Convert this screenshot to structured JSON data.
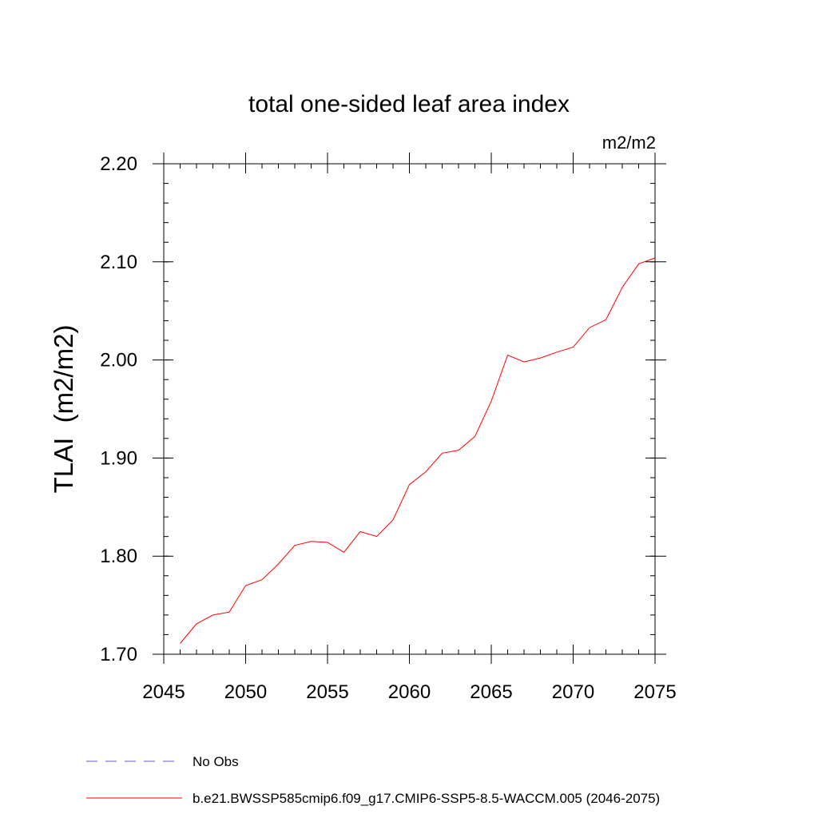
{
  "chart_data": {
    "type": "line",
    "title": "total one-sided leaf area index",
    "units": "m2/m2",
    "ylabel": "TLAI  (m2/m2)",
    "xlabel": "",
    "xlim": [
      2045,
      2075
    ],
    "ylim": [
      1.7,
      2.2
    ],
    "x_ticks": [
      {
        "value": 2045,
        "label": "2045"
      },
      {
        "value": 2050,
        "label": "2050"
      },
      {
        "value": 2055,
        "label": "2055"
      },
      {
        "value": 2060,
        "label": "2060"
      },
      {
        "value": 2065,
        "label": "2065"
      },
      {
        "value": 2070,
        "label": "2070"
      },
      {
        "value": 2075,
        "label": "2075"
      }
    ],
    "y_ticks": [
      {
        "value": 1.7,
        "label": "1.70"
      },
      {
        "value": 1.8,
        "label": "1.80"
      },
      {
        "value": 1.9,
        "label": "1.90"
      },
      {
        "value": 2.0,
        "label": "2.00"
      },
      {
        "value": 2.1,
        "label": "2.10"
      },
      {
        "value": 2.2,
        "label": "2.20"
      }
    ],
    "x_minor_step": 1,
    "y_minor_step": 0.02,
    "grid": false,
    "legend_position": "bottom",
    "legend": [
      {
        "label": "No Obs",
        "color": "#6a5acd",
        "dash": "dashed"
      },
      {
        "label": "b.e21.BWSSP585cmip6.f09_g17.CMIP6-SSP5-8.5-WACCM.005 (2046-2075)",
        "color": "#ff0000",
        "dash": "solid"
      }
    ],
    "series": [
      {
        "name": "b.e21.BWSSP585cmip6.f09_g17.CMIP6-SSP5-8.5-WACCM.005 (2046-2075)",
        "color": "#ff0000",
        "x": [
          2046,
          2047,
          2048,
          2049,
          2050,
          2051,
          2052,
          2053,
          2054,
          2055,
          2056,
          2057,
          2058,
          2059,
          2060,
          2061,
          2062,
          2063,
          2064,
          2065,
          2066,
          2067,
          2068,
          2069,
          2070,
          2071,
          2072,
          2073,
          2074,
          2075
        ],
        "y": [
          1.711,
          1.731,
          1.74,
          1.743,
          1.77,
          1.776,
          1.792,
          1.811,
          1.815,
          1.814,
          1.804,
          1.825,
          1.82,
          1.837,
          1.873,
          1.886,
          1.905,
          1.908,
          1.922,
          1.958,
          2.005,
          1.998,
          2.002,
          2.008,
          2.013,
          2.033,
          2.041,
          2.074,
          2.098,
          2.104
        ]
      }
    ]
  }
}
